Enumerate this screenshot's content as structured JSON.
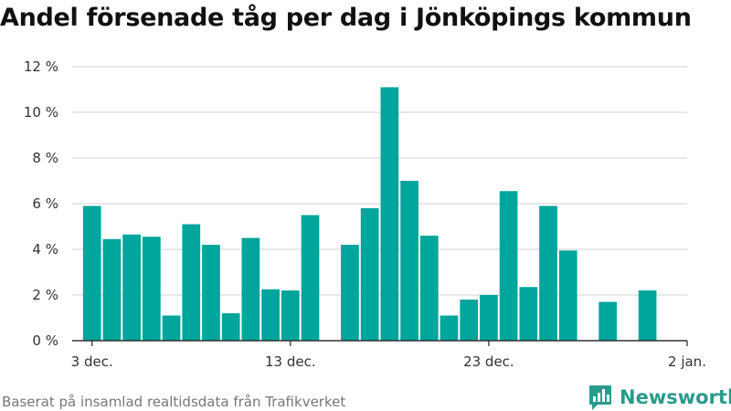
{
  "chart_data": {
    "type": "bar",
    "title": "Andel försenade tåg per dag i Jönköpings kommun",
    "xlabel": "",
    "ylabel": "",
    "x_start": "2023-12-02",
    "x_end": "2024-01-02",
    "x": [
      "2023-12-03",
      "2023-12-04",
      "2023-12-05",
      "2023-12-06",
      "2023-12-07",
      "2023-12-08",
      "2023-12-09",
      "2023-12-10",
      "2023-12-11",
      "2023-12-12",
      "2023-12-13",
      "2023-12-14",
      "2023-12-15",
      "2023-12-16",
      "2023-12-17",
      "2023-12-18",
      "2023-12-19",
      "2023-12-20",
      "2023-12-21",
      "2023-12-22",
      "2023-12-23",
      "2023-12-24",
      "2023-12-25",
      "2023-12-26",
      "2023-12-27",
      "2023-12-28",
      "2023-12-29",
      "2023-12-30",
      "2023-12-31",
      "2024-01-01"
    ],
    "values": [
      5.9,
      4.45,
      4.65,
      4.55,
      1.1,
      5.1,
      4.2,
      1.2,
      4.5,
      2.25,
      2.2,
      5.5,
      0,
      4.2,
      5.8,
      11.1,
      7.0,
      4.6,
      1.1,
      1.8,
      2.0,
      6.55,
      2.35,
      5.9,
      3.95,
      0,
      1.7,
      0,
      2.2,
      0
    ],
    "ylim": [
      0,
      12
    ],
    "yticks": [
      0,
      2,
      4,
      6,
      8,
      10,
      12
    ],
    "ytick_labels": [
      "0 %",
      "2 %",
      "4 %",
      "6 %",
      "8 %",
      "10 %",
      "12 %"
    ],
    "xticks": [
      "2023-12-03",
      "2023-12-13",
      "2023-12-23",
      "2024-01-02"
    ],
    "xtick_labels": [
      "3 dec.",
      "13 dec.",
      "23 dec.",
      "2 jan."
    ],
    "grid": true,
    "bar_color": "#00a59b"
  },
  "footer": {
    "source": "Baserat på insamlad realtidsdata från Trafikverket"
  },
  "brand": {
    "name": "Newsworthy",
    "icon": "newsworthy-bar-icon",
    "color": "#2a9b8b"
  }
}
